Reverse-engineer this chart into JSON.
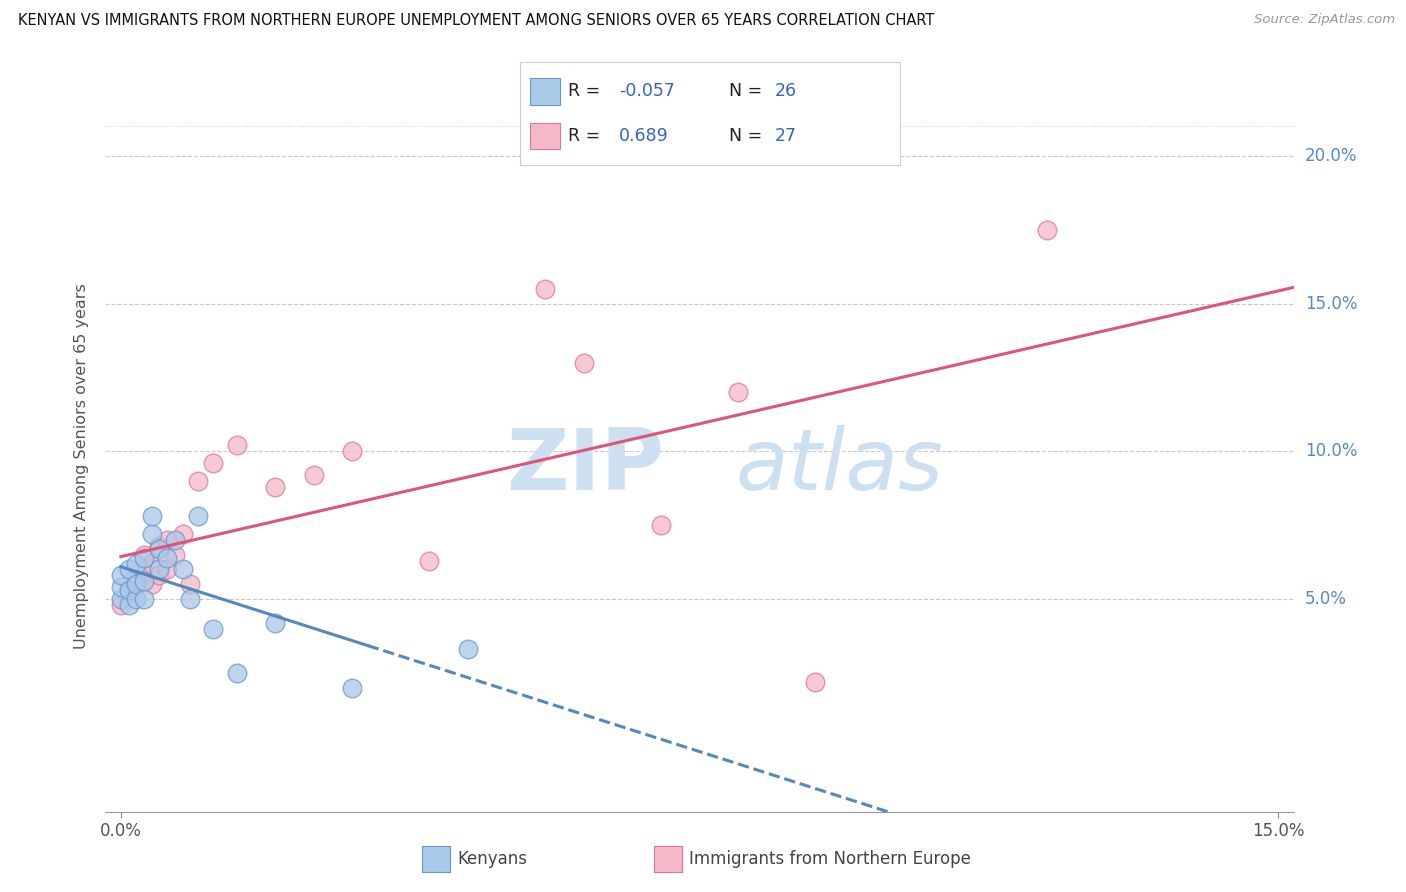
{
  "title": "KENYAN VS IMMIGRANTS FROM NORTHERN EUROPE UNEMPLOYMENT AMONG SENIORS OVER 65 YEARS CORRELATION CHART",
  "source": "Source: ZipAtlas.com",
  "ylabel": "Unemployment Among Seniors over 65 years",
  "xlim": [
    -0.002,
    0.152
  ],
  "ylim": [
    -0.022,
    0.212
  ],
  "yticks": [
    0.05,
    0.1,
    0.15,
    0.2
  ],
  "ytick_labels": [
    "5.0%",
    "10.0%",
    "15.0%",
    "20.0%"
  ],
  "xtick_positions": [
    0.0,
    0.15
  ],
  "xtick_labels": [
    "0.0%",
    "15.0%"
  ],
  "kenyan_R": "-0.057",
  "kenyan_N": "26",
  "northern_R": "0.689",
  "northern_N": "27",
  "kenyan_color": "#aac8e8",
  "kenyan_edge": "#6699cc",
  "northern_color": "#f5b8c8",
  "northern_edge": "#dd7799",
  "trendline_k_color": "#5588bb",
  "trendline_n_color": "#dd5577",
  "bg_color": "#ffffff",
  "grid_color": "#bbbbbb",
  "watermark_color": "#cce0f2",
  "legend_bottom_labels": [
    "Kenyans",
    "Immigrants from Northern Europe"
  ],
  "kenyan_x": [
    0.0,
    0.0,
    0.0,
    0.001,
    0.001,
    0.001,
    0.002,
    0.002,
    0.002,
    0.003,
    0.003,
    0.003,
    0.004,
    0.004,
    0.005,
    0.005,
    0.006,
    0.007,
    0.008,
    0.009,
    0.01,
    0.012,
    0.015,
    0.02,
    0.03,
    0.045
  ],
  "kenyan_y": [
    0.05,
    0.054,
    0.058,
    0.048,
    0.053,
    0.06,
    0.05,
    0.055,
    0.062,
    0.05,
    0.056,
    0.064,
    0.072,
    0.078,
    0.06,
    0.067,
    0.064,
    0.07,
    0.06,
    0.05,
    0.078,
    0.04,
    0.025,
    0.042,
    0.02,
    0.033
  ],
  "northern_x": [
    0.0,
    0.001,
    0.002,
    0.003,
    0.003,
    0.004,
    0.004,
    0.005,
    0.005,
    0.006,
    0.006,
    0.007,
    0.008,
    0.009,
    0.01,
    0.012,
    0.015,
    0.02,
    0.025,
    0.03,
    0.04,
    0.055,
    0.06,
    0.07,
    0.08,
    0.09,
    0.12
  ],
  "northern_y": [
    0.048,
    0.052,
    0.055,
    0.058,
    0.065,
    0.055,
    0.062,
    0.058,
    0.068,
    0.06,
    0.07,
    0.065,
    0.072,
    0.055,
    0.09,
    0.096,
    0.102,
    0.088,
    0.092,
    0.1,
    0.063,
    0.155,
    0.13,
    0.075,
    0.12,
    0.022,
    0.175
  ]
}
